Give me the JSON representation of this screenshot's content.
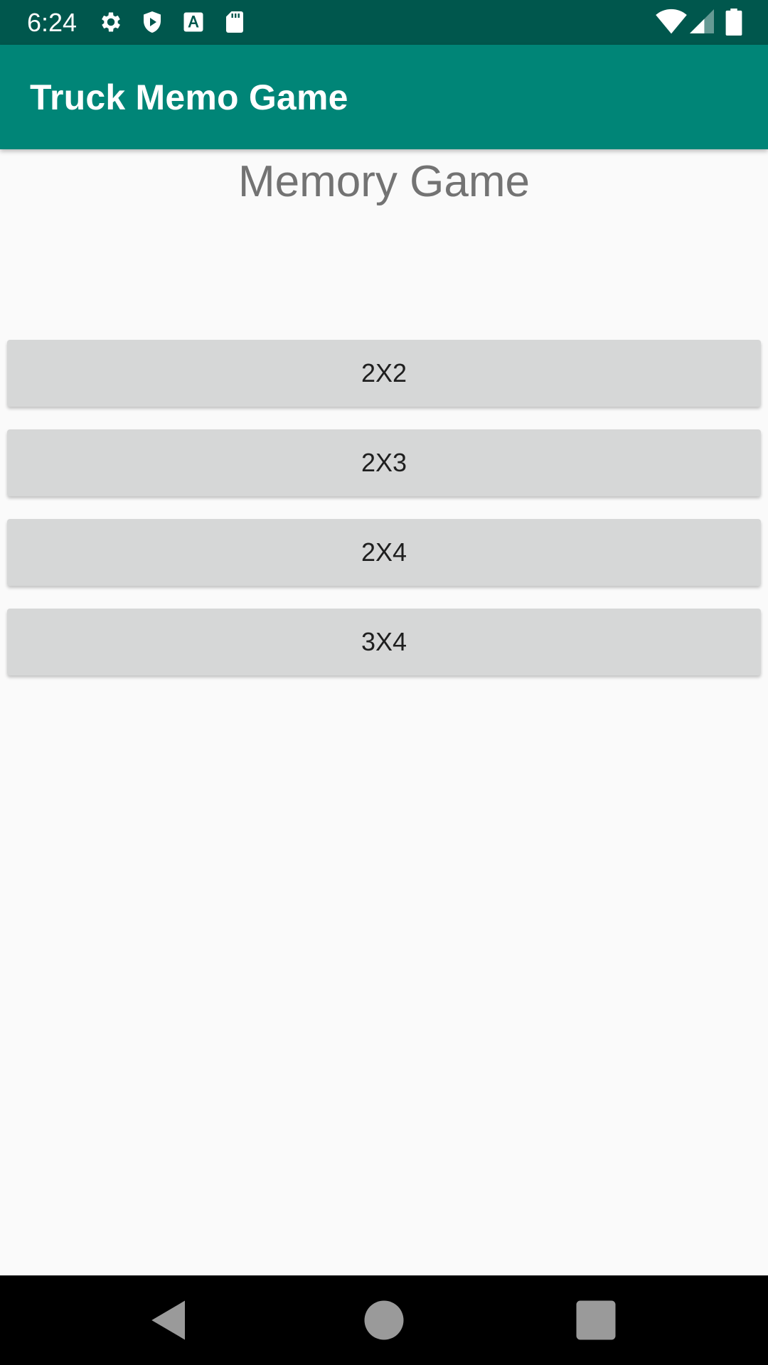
{
  "status_bar": {
    "time": "6:24",
    "icons": [
      "gear-icon",
      "shield-play-icon",
      "font-a-icon",
      "sd-card-icon",
      "wifi-icon",
      "signal-icon",
      "battery-icon"
    ],
    "background_color": "#00574d"
  },
  "app_bar": {
    "title": "Truck Memo Game",
    "background_color": "#008577"
  },
  "main": {
    "heading": "Memory Game",
    "buttons": [
      {
        "label": "2X2"
      },
      {
        "label": "2X3"
      },
      {
        "label": "2X4"
      },
      {
        "label": "3X4"
      }
    ]
  },
  "nav_bar": {
    "icons": [
      "back-icon",
      "home-icon",
      "recents-icon"
    ]
  }
}
